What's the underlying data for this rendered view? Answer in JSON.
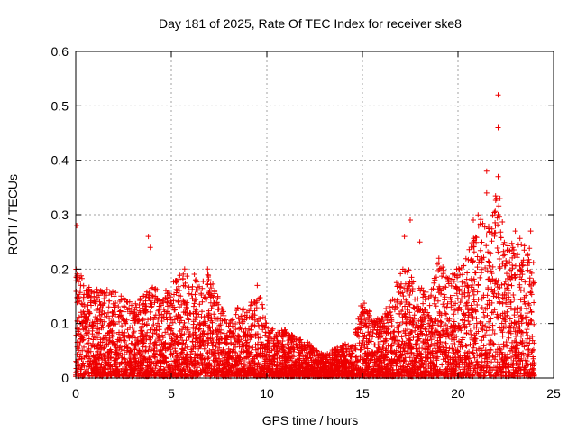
{
  "chart_data": {
    "type": "scatter",
    "title": "Day 181 of 2025, Rate Of TEC Index for receiver ske8",
    "xlabel": "GPS time / hours",
    "ylabel": "ROTI / TECUs",
    "xlim": [
      0,
      25
    ],
    "ylim": [
      0,
      0.6
    ],
    "xticks": [
      "0",
      "5",
      "10",
      "15",
      "20",
      "25"
    ],
    "yticks": [
      "0",
      "0.1",
      "0.2",
      "0.3",
      "0.4",
      "0.5",
      "0.6"
    ],
    "grid": true,
    "marker": "+",
    "color": "#ee0000",
    "series": [
      {
        "name": "ROTI",
        "envelope_hour": [
          0,
          0.5,
          1,
          1.5,
          2,
          2.5,
          3,
          3.5,
          4,
          4.5,
          5,
          5.5,
          6,
          6.5,
          7,
          7.5,
          8,
          8.5,
          9,
          9.5,
          10,
          10.5,
          11,
          11.5,
          12,
          12.5,
          13,
          13.5,
          14,
          14.5,
          15,
          15.5,
          16,
          16.5,
          17,
          17.5,
          18,
          18.5,
          19,
          19.5,
          20,
          20.5,
          21,
          21.5,
          22,
          22.5,
          23,
          23.5,
          24
        ],
        "envelope_max_roti": [
          0.2,
          0.18,
          0.16,
          0.16,
          0.16,
          0.15,
          0.13,
          0.15,
          0.17,
          0.15,
          0.17,
          0.2,
          0.2,
          0.17,
          0.2,
          0.14,
          0.1,
          0.13,
          0.12,
          0.17,
          0.1,
          0.08,
          0.09,
          0.07,
          0.07,
          0.05,
          0.04,
          0.05,
          0.06,
          0.06,
          0.15,
          0.11,
          0.12,
          0.14,
          0.2,
          0.2,
          0.17,
          0.16,
          0.22,
          0.18,
          0.2,
          0.22,
          0.3,
          0.27,
          0.35,
          0.25,
          0.25,
          0.27,
          0.21
        ],
        "peaks": [
          {
            "hour": 0.05,
            "roti": 0.28
          },
          {
            "hour": 3.8,
            "roti": 0.26
          },
          {
            "hour": 3.9,
            "roti": 0.24
          },
          {
            "hour": 5.7,
            "roti": 0.2
          },
          {
            "hour": 6.9,
            "roti": 0.2
          },
          {
            "hour": 9.5,
            "roti": 0.17
          },
          {
            "hour": 17.2,
            "roti": 0.26
          },
          {
            "hour": 17.5,
            "roti": 0.29
          },
          {
            "hour": 18.0,
            "roti": 0.25
          },
          {
            "hour": 19.0,
            "roti": 0.22
          },
          {
            "hour": 20.8,
            "roti": 0.29
          },
          {
            "hour": 21.5,
            "roti": 0.38
          },
          {
            "hour": 21.5,
            "roti": 0.34
          },
          {
            "hour": 22.1,
            "roti": 0.52
          },
          {
            "hour": 22.1,
            "roti": 0.46
          },
          {
            "hour": 22.1,
            "roti": 0.37
          },
          {
            "hour": 22.2,
            "roti": 0.33
          },
          {
            "hour": 22.1,
            "roti": 0.3
          },
          {
            "hour": 23.0,
            "roti": 0.27
          },
          {
            "hour": 23.8,
            "roti": 0.27
          }
        ]
      }
    ]
  }
}
